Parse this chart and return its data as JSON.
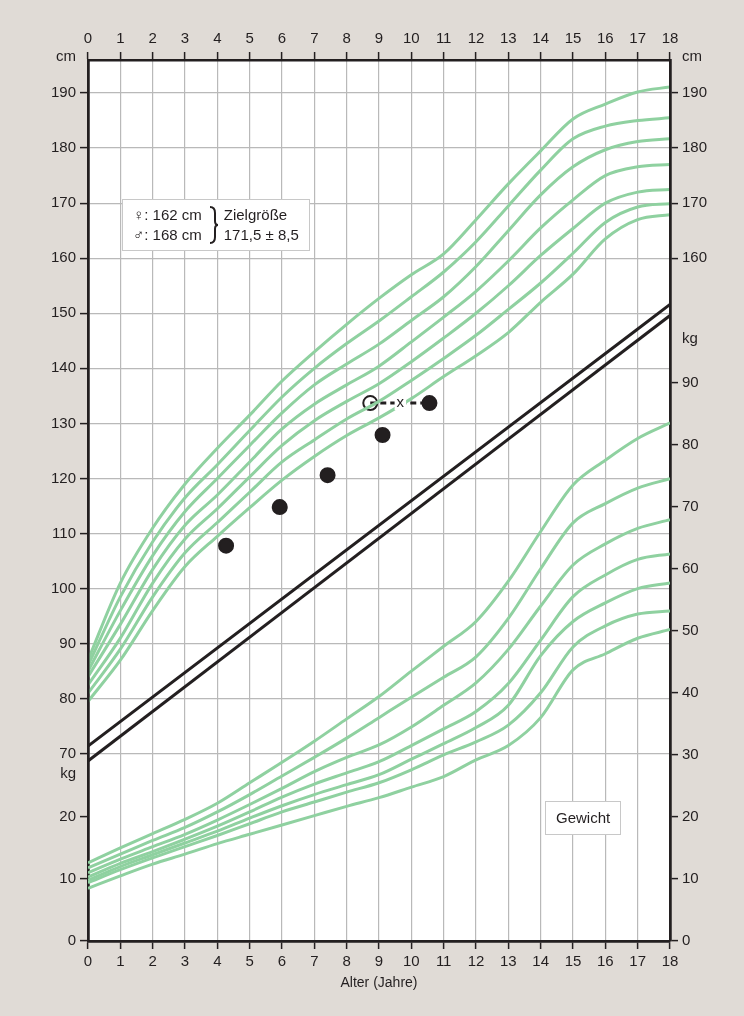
{
  "chart_data": [
    {
      "type": "line",
      "xlabel": "Alter (Jahre)",
      "ylabel": "cm",
      "y2label": "cm",
      "x": [
        0,
        1,
        2,
        3,
        4,
        5,
        6,
        7,
        8,
        9,
        10,
        11,
        12,
        13,
        14,
        15,
        16,
        17,
        18
      ],
      "xlim": [
        0,
        18
      ],
      "xticks": [
        0,
        1,
        2,
        3,
        4,
        5,
        6,
        7,
        8,
        9,
        10,
        11,
        12,
        13,
        14,
        15,
        16,
        17,
        18
      ],
      "x2lim": [
        0,
        18
      ],
      "x2ticks": [
        0,
        1,
        2,
        3,
        4,
        5,
        6,
        7,
        8,
        9,
        10,
        11,
        12,
        13,
        14,
        15,
        16,
        17,
        18
      ],
      "ylim": [
        36,
        196
      ],
      "yticks": [
        70,
        80,
        90,
        100,
        110,
        120,
        130,
        140,
        150,
        160,
        170,
        180,
        190
      ],
      "y2lim": [
        36,
        196
      ],
      "y2ticks": [
        160,
        170,
        180,
        190
      ],
      "grid": true,
      "legend": false,
      "marker": "none",
      "line_style": "solid",
      "series": [
        {
          "color": "#8fd1a0",
          "values": [
            87,
            101,
            111,
            119,
            125.5,
            131.5,
            137.7,
            143,
            148,
            152.7,
            157,
            160.8,
            167,
            173.5,
            179.5,
            185.3,
            188,
            190.2,
            191.1
          ]
        },
        {
          "color": "#8fd1a0",
          "values": [
            86,
            98.5,
            108.5,
            116.5,
            122.5,
            128.7,
            134.8,
            140,
            144.5,
            148.6,
            153,
            157.5,
            163,
            169.5,
            176,
            181.7,
            184,
            185,
            185.5
          ]
        },
        {
          "color": "#8fd1a0",
          "values": [
            85,
            96,
            106,
            114,
            120,
            126,
            131.9,
            137,
            140.8,
            144.4,
            148.7,
            153,
            158.5,
            165,
            171.5,
            176.6,
            179.7,
            181.2,
            181.7
          ]
        },
        {
          "color": "#8fd1a0",
          "values": [
            84,
            93.5,
            103.5,
            111.5,
            117,
            123,
            129,
            133.5,
            137,
            140.4,
            144.8,
            149.3,
            154,
            159.5,
            165.5,
            170.6,
            175,
            176.6,
            177
          ]
        },
        {
          "color": "#8fd1a0",
          "values": [
            82.5,
            91,
            101,
            109,
            114.5,
            120.3,
            126,
            130.5,
            134,
            137.2,
            141.2,
            145.5,
            150,
            155,
            160.5,
            165.4,
            170,
            172,
            172.5
          ]
        },
        {
          "color": "#8fd1a0",
          "values": [
            81,
            89,
            98.5,
            106.5,
            112,
            117.5,
            123,
            127,
            130.8,
            134,
            137.8,
            141.8,
            146,
            150.7,
            155.5,
            160.9,
            166.5,
            169.3,
            169.9
          ]
        },
        {
          "color": "#8fd1a0",
          "values": [
            79.5,
            87,
            96,
            104,
            109.5,
            114.7,
            119.7,
            124,
            127.8,
            131,
            134.5,
            138.5,
            142.3,
            146.5,
            152,
            157.1,
            163.5,
            167,
            167.9
          ]
        },
        {
          "color": "#231f20",
          "x": [
            0,
            18
          ],
          "values": [
            71.4,
            151.6
          ]
        },
        {
          "color": "#231f20",
          "x": [
            0,
            18
          ],
          "values": [
            68.7,
            149.6
          ]
        },
        {
          "type": "scatter",
          "marker": "circle",
          "color": "#231f20",
          "x": [
            4.27,
            5.93,
            7.41,
            9.11,
            10.56
          ],
          "values": [
            107.8,
            114.8,
            120.6,
            127.9,
            133.7
          ]
        },
        {
          "color": "#231f20",
          "line_style": "dashed",
          "x": [
            8.73,
            10.56
          ],
          "values": [
            133.7,
            133.7
          ]
        },
        {
          "type": "scatter",
          "marker": "circle",
          "color": "#ffffff",
          "x": [
            8.73
          ],
          "values": [
            133.7
          ]
        }
      ],
      "annotations": [
        "♀: 162 cm",
        "♂: 168 cm",
        "Zielgröße",
        "171,5 ± 8,5",
        "Gewicht",
        {
          "text": "x",
          "x": 9.66,
          "y": 133.7
        }
      ]
    },
    {
      "type": "line",
      "ylabel": "kg",
      "y2label": "kg",
      "x": [
        0,
        1,
        2,
        3,
        4,
        5,
        6,
        7,
        8,
        9,
        10,
        11,
        12,
        13,
        14,
        15,
        16,
        17,
        18
      ],
      "xlim": [
        0,
        18
      ],
      "ylim": [
        0,
        142
      ],
      "yticks": [
        0,
        10,
        20
      ],
      "y2lim": [
        0,
        142
      ],
      "y2ticks": [
        0,
        10,
        20,
        30,
        40,
        50,
        60,
        70,
        80,
        90
      ],
      "tick_labels": "y",
      "legend": false,
      "marker": "none",
      "line_style": "solid",
      "series": [
        {
          "color": "#8fd1a0",
          "values": [
            12.6,
            15,
            17.3,
            19.6,
            22.2,
            25.5,
            28.8,
            32.2,
            35.8,
            39.4,
            43.5,
            47.5,
            51.5,
            58,
            66,
            73.5,
            77.5,
            81,
            83.5
          ]
        },
        {
          "color": "#8fd1a0",
          "values": [
            11.8,
            14,
            16.2,
            18.3,
            20.8,
            23.6,
            26.6,
            29.6,
            32.7,
            36,
            39.3,
            42.5,
            45.8,
            52,
            60,
            67.4,
            70.5,
            73,
            74.5
          ]
        },
        {
          "color": "#8fd1a0",
          "values": [
            11,
            13.2,
            15.2,
            17.2,
            19.5,
            22,
            24.6,
            27.3,
            29.6,
            31.6,
            34.5,
            38,
            41.6,
            47,
            54,
            60.6,
            64,
            66.5,
            67.9
          ]
        },
        {
          "color": "#8fd1a0",
          "values": [
            10.3,
            12.5,
            14.4,
            16.4,
            18.5,
            20.8,
            23.2,
            25.3,
            27.1,
            28.9,
            31.5,
            34.2,
            37,
            41.5,
            48.5,
            55.5,
            59,
            61.5,
            62.4
          ]
        },
        {
          "color": "#8fd1a0",
          "values": [
            9.8,
            12,
            13.9,
            15.8,
            17.7,
            19.8,
            21.8,
            23.6,
            25.2,
            26.8,
            29.3,
            31.8,
            34.4,
            38,
            46,
            51.5,
            54.5,
            56.8,
            57.7
          ]
        },
        {
          "color": "#8fd1a0",
          "values": [
            9.4,
            11.5,
            13.4,
            15.2,
            17,
            18.9,
            20.8,
            22.4,
            24,
            25.5,
            27.6,
            30,
            32.1,
            34.8,
            40,
            47.4,
            50.8,
            52.7,
            53.2
          ]
        },
        {
          "color": "#8fd1a0",
          "values": [
            8.5,
            10.5,
            12.4,
            14,
            15.7,
            17.2,
            18.7,
            20.2,
            21.7,
            23.1,
            24.8,
            26.5,
            29.2,
            31.5,
            36,
            43.7,
            46.3,
            48.8,
            50.2
          ]
        }
      ]
    }
  ]
}
